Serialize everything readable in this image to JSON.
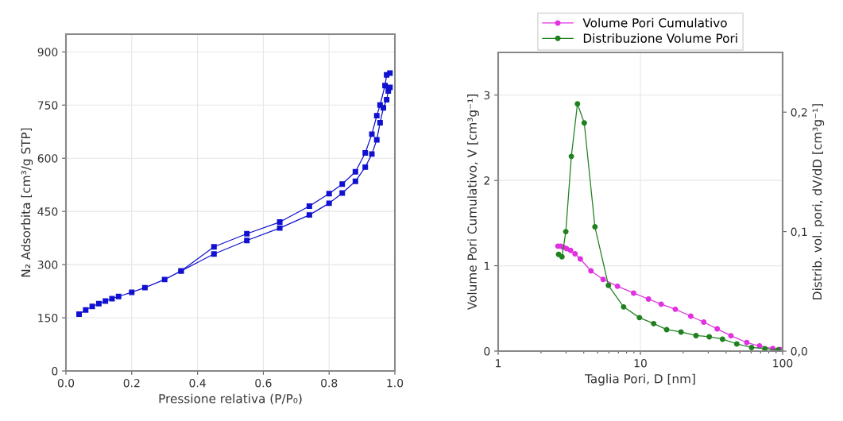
{
  "chart_data": [
    {
      "type": "line",
      "xlabel": "Pressione relativa (P/P₀)",
      "ylabel": "N₂ Adsorbita [cm³/g STP]",
      "xlim": [
        0,
        1
      ],
      "xticks": [
        {
          "value": 0,
          "label": "0.0"
        },
        {
          "value": 0.2,
          "label": "0.2"
        },
        {
          "value": 0.4,
          "label": "0.4"
        },
        {
          "value": 0.6,
          "label": "0.6"
        },
        {
          "value": 0.8,
          "label": "0.8"
        },
        {
          "value": 1,
          "label": "1.0"
        }
      ],
      "ylim": [
        0,
        950
      ],
      "yticks": [
        0,
        150,
        300,
        450,
        600,
        750,
        900
      ],
      "grid": true,
      "marker": "square",
      "line_style": "solid",
      "series": [
        {
          "color": "#1010d0",
          "x": [
            0.04,
            0.06,
            0.08,
            0.1,
            0.12,
            0.14,
            0.16,
            0.2,
            0.24,
            0.3,
            0.35,
            0.45,
            0.55,
            0.65,
            0.74,
            0.8,
            0.84,
            0.88,
            0.91,
            0.93,
            0.945,
            0.955,
            0.965,
            0.975,
            0.98,
            0.985
          ],
          "values": [
            160,
            172,
            182,
            190,
            197,
            204,
            210,
            222,
            235,
            258,
            282,
            330,
            368,
            403,
            440,
            473,
            502,
            535,
            575,
            612,
            652,
            700,
            742,
            765,
            790,
            800
          ]
        },
        {
          "color": "#1010d0",
          "x": [
            0.985,
            0.975,
            0.97,
            0.955,
            0.945,
            0.93,
            0.91,
            0.88,
            0.84,
            0.8,
            0.74,
            0.65,
            0.55,
            0.45,
            0.35
          ],
          "values": [
            840,
            835,
            805,
            750,
            720,
            668,
            615,
            562,
            527,
            500,
            465,
            420,
            387,
            350,
            282
          ]
        }
      ]
    },
    {
      "type": "line",
      "xlabel": "Taglia Pori, D [nm]",
      "ylabel": "Volume Pori Cumulativo, V [cm³g⁻¹]",
      "y2label": "Distrib. vol. pori, dV/dD [cm³g⁻¹]",
      "log": "x",
      "xlim": [
        1,
        100
      ],
      "xticks": [
        1,
        10,
        100
      ],
      "ylim": [
        0,
        3.5
      ],
      "yticks": [
        0,
        1,
        2,
        3
      ],
      "y2lim": [
        0,
        0.25
      ],
      "y2ticks": [
        {
          "value": 0,
          "label": "0,0"
        },
        {
          "value": 0.1,
          "label": "0,1"
        },
        {
          "value": 0.2,
          "label": "0,2"
        }
      ],
      "grid": true,
      "legend": "top",
      "marker": "circle",
      "line_style": "solid",
      "series": [
        {
          "name": "Volume Pori Cumulativo",
          "color": "#e030e0",
          "x": [
            2.63,
            2.74,
            2.86,
            3.03,
            3.23,
            3.47,
            3.78,
            4.49,
            5.47,
            6.9,
            8.96,
            11.4,
            14.0,
            17.6,
            22.6,
            27.9,
            34.7,
            43.3,
            56.0,
            68.8,
            85.3,
            95.8
          ],
          "values": [
            1.23,
            1.23,
            1.22,
            1.2,
            1.18,
            1.14,
            1.08,
            0.94,
            0.84,
            0.76,
            0.68,
            0.61,
            0.55,
            0.49,
            0.41,
            0.34,
            0.26,
            0.18,
            0.1,
            0.06,
            0.03,
            0.02
          ]
        },
        {
          "name": "Distribuzione Volume Pori",
          "color": "#208020",
          "axis": "y2",
          "x": [
            2.66,
            2.81,
            2.99,
            3.27,
            3.61,
            4.03,
            4.79,
            5.96,
            7.62,
            9.85,
            12.4,
            15.3,
            19.3,
            24.6,
            30.5,
            37.8,
            47.6,
            60.5,
            75.0,
            93.0
          ],
          "values": [
            0.081,
            0.079,
            0.1,
            0.163,
            0.207,
            0.191,
            0.104,
            0.055,
            0.037,
            0.028,
            0.023,
            0.018,
            0.016,
            0.013,
            0.012,
            0.01,
            0.006,
            0.003,
            0.002,
            0.001
          ]
        }
      ]
    }
  ]
}
